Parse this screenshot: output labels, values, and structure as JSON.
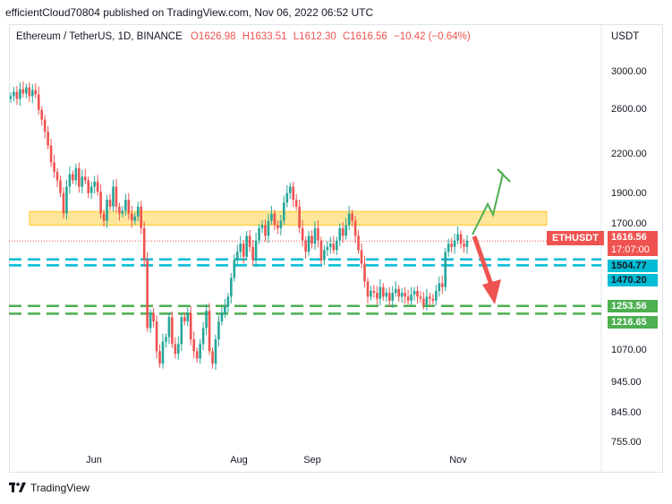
{
  "header": {
    "published_line": "efficientCloud70804 published on TradingView.com, Nov 06, 2022 06:52 UTC"
  },
  "legend": {
    "symbol": "Ethereum / TetherUS, 1D, BINANCE",
    "open": "O1626.98",
    "high": "H1633.51",
    "low": "L1612.30",
    "close": "C1616.56",
    "change": "−10.42 (−0.64%)"
  },
  "axis": {
    "unit": "USDT",
    "y_ticks": [
      "3000.00",
      "2600.00",
      "2200.00",
      "1900.00",
      "1700.00",
      "1070.00",
      "945.00",
      "845.00",
      "755.00"
    ],
    "x_ticks": [
      "Jun",
      "Aug",
      "Sep",
      "Nov"
    ]
  },
  "price_tags": {
    "symbol": "ETHUSDT",
    "last_price": "1616.56",
    "countdown": "17:07:00",
    "cyan_upper": "1504.77",
    "cyan_lower": "1470.20",
    "green_upper": "1253.56",
    "green_lower": "1216.65"
  },
  "footer": {
    "brand": "TradingView"
  },
  "colors": {
    "up": "#26a69a",
    "down": "#ef5350",
    "zone": "#ffe082",
    "cyan": "#00bcd4",
    "green": "#4caf50"
  },
  "chart_data": {
    "type": "candlestick",
    "title": "Ethereum / TetherUS, 1D, BINANCE",
    "ylabel": "USDT",
    "y_scale": "log",
    "ylim": [
      720,
      3250
    ],
    "x_ticks": [
      "Jun",
      "Aug",
      "Sep",
      "Nov"
    ],
    "zone": [
      1720,
      1815
    ],
    "levels": [
      {
        "name": "cyan_upper",
        "value": 1504.77
      },
      {
        "name": "cyan_lower",
        "value": 1470.2
      },
      {
        "name": "green_upper",
        "value": 1253.56
      },
      {
        "name": "green_lower",
        "value": 1216.65
      }
    ],
    "last_price": 1616.56,
    "closes": [
      2850,
      2900,
      2820,
      2930,
      2880,
      2950,
      2850,
      2920,
      2870,
      2700,
      2600,
      2480,
      2350,
      2200,
      2120,
      2050,
      1950,
      1800,
      2000,
      2100,
      2050,
      2150,
      2000,
      2080,
      2050,
      1950,
      2000,
      2040,
      1960,
      1800,
      1750,
      1900,
      1850,
      2000,
      1850,
      1800,
      1820,
      1900,
      1800,
      1750,
      1780,
      1850,
      1700,
      1500,
      1150,
      1220,
      1180,
      1050,
      1000,
      1090,
      1110,
      1200,
      1080,
      1040,
      1080,
      1200,
      1180,
      1220,
      1100,
      1050,
      1020,
      1080,
      1150,
      1230,
      1050,
      1000,
      1100,
      1180,
      1220,
      1250,
      1300,
      1400,
      1500,
      1550,
      1600,
      1520,
      1650,
      1580,
      1500,
      1620,
      1700,
      1720,
      1650,
      1750,
      1800,
      1720,
      1700,
      1750,
      1880,
      1950,
      2000,
      1900,
      1850,
      1700,
      1620,
      1550,
      1650,
      1600,
      1700,
      1620,
      1500,
      1560,
      1580,
      1600,
      1560,
      1620,
      1700,
      1650,
      1720,
      1800,
      1750,
      1650,
      1560,
      1480,
      1380,
      1300,
      1330,
      1320,
      1290,
      1350,
      1300,
      1320,
      1280,
      1320,
      1340,
      1300,
      1320,
      1300,
      1280,
      1310,
      1330,
      1300,
      1290,
      1260,
      1300,
      1290,
      1280,
      1330,
      1370,
      1350,
      1550,
      1600,
      1580,
      1620,
      1660,
      1600,
      1580,
      1617
    ]
  }
}
